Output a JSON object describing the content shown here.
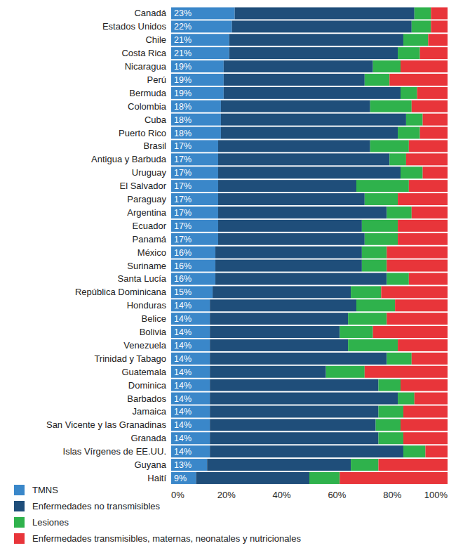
{
  "chart_data": {
    "type": "bar",
    "orientation": "horizontal",
    "stacked": true,
    "data_labels": true,
    "grid": false,
    "legend": "bottom",
    "categories": [
      "Canadá",
      "Estados Unidos",
      "Chile",
      "Costa Rica",
      "Nicaragua",
      "Perú",
      "Bermuda",
      "Colombia",
      "Cuba",
      "Puerto Rico",
      "Brasil",
      "Antigua y Barbuda",
      "Uruguay",
      "El Salvador",
      "Paraguay",
      "Argentina",
      "Ecuador",
      "Panamá",
      "México",
      "Suriname",
      "Santa Lucía",
      "República Dominicana",
      "Honduras",
      "Belice",
      "Bolivia",
      "Venezuela",
      "Trinidad y Tabago",
      "Guatemala",
      "Dominica",
      "Barbados",
      "Jamaica",
      "San Vicente y las Granadinas",
      "Granada",
      "Islas Vírgenes de EE.UU.",
      "Guyana",
      "Haití"
    ],
    "series": [
      {
        "name": "TMNS",
        "color": "#3a87c9",
        "values": [
          23,
          22,
          21,
          21,
          19,
          19,
          19,
          18,
          18,
          18,
          17,
          17,
          17,
          17,
          17,
          17,
          17,
          17,
          16,
          16,
          16,
          15,
          14,
          14,
          14,
          14,
          14,
          14,
          14,
          14,
          14,
          14,
          14,
          14,
          13,
          9
        ],
        "value_labels": [
          "23%",
          "22%",
          "21%",
          "21%",
          "19%",
          "19%",
          "19%",
          "18%",
          "18%",
          "18%",
          "17%",
          "17%",
          "17%",
          "17%",
          "17%",
          "17%",
          "17%",
          "17%",
          "16%",
          "16%",
          "16%",
          "15%",
          "14%",
          "14%",
          "14%",
          "14%",
          "14%",
          "14%",
          "14%",
          "14%",
          "14%",
          "14%",
          "14%",
          "14%",
          "13%",
          "9%"
        ]
      },
      {
        "name": "Enfermedades no transmisibles",
        "color": "#1f4e7a",
        "values": [
          65,
          65,
          63,
          61,
          54,
          51,
          64,
          54,
          67,
          64,
          55,
          62,
          66,
          50,
          53,
          61,
          52,
          53,
          53,
          53,
          62,
          50,
          53,
          50,
          47,
          50,
          64,
          42,
          61,
          68,
          61,
          60,
          61,
          70,
          52,
          41
        ]
      },
      {
        "name": "Lesiones",
        "color": "#2fb24c",
        "values": [
          6,
          7,
          9,
          8,
          10,
          9,
          6,
          15,
          6,
          8,
          14,
          6,
          8,
          19,
          12,
          9,
          13,
          12,
          9,
          9,
          8,
          11,
          14,
          14,
          12,
          18,
          9,
          14,
          8,
          6,
          9,
          9,
          9,
          8,
          10,
          11
        ]
      },
      {
        "name": "Enfermedades transmisibles, maternas, neonatales y nutricionales",
        "color": "#e8353a",
        "values": [
          6,
          6,
          7,
          10,
          17,
          21,
          11,
          13,
          9,
          10,
          14,
          15,
          9,
          14,
          18,
          13,
          18,
          18,
          22,
          22,
          14,
          24,
          19,
          22,
          27,
          18,
          13,
          30,
          17,
          12,
          16,
          17,
          16,
          8,
          25,
          39
        ]
      }
    ],
    "xlim": [
      0,
      100
    ],
    "xticks": [
      {
        "value": 0,
        "label": "0%"
      },
      {
        "value": 20,
        "label": "20%"
      },
      {
        "value": 40,
        "label": "40%"
      },
      {
        "value": 60,
        "label": "60%"
      },
      {
        "value": 80,
        "label": "80%"
      },
      {
        "value": 100,
        "label": "100%"
      }
    ]
  }
}
